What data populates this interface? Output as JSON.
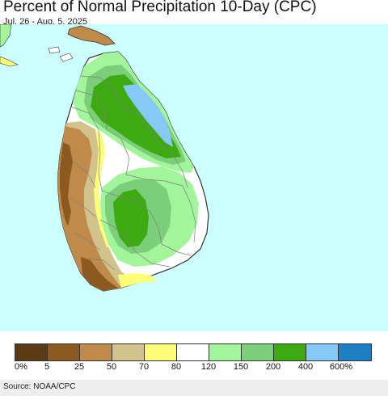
{
  "header": {
    "title": "Percent of Normal Precipitation 10-Day (CPC)",
    "date_range": "Jul. 26 - Aug. 5, 2025"
  },
  "map": {
    "ocean_color": "#ccffff",
    "border_color": "#7f7f7f"
  },
  "legend": {
    "colors": [
      "#5a3a12",
      "#8c5a20",
      "#c08a4a",
      "#d2c38c",
      "#ffff77",
      "#ffffff",
      "#a2f59a",
      "#7ccf7a",
      "#3eaa12",
      "#87c9f6",
      "#1e80c4"
    ],
    "labels": [
      "0%",
      "5",
      "25",
      "50",
      "70",
      "80",
      "120",
      "150",
      "200",
      "400",
      "600%"
    ]
  },
  "footer": {
    "source": "Source: NOAA/CPC"
  }
}
